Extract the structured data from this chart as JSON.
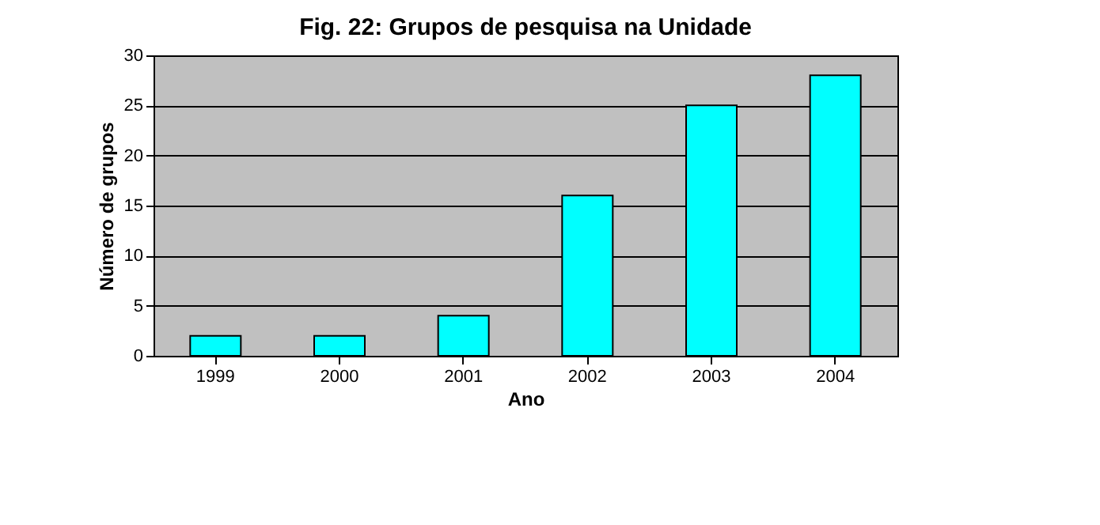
{
  "chart_data": {
    "type": "bar",
    "title": "Fig. 22: Grupos de pesquisa na Unidade",
    "xlabel": "Ano",
    "ylabel": "Número de grupos",
    "categories": [
      "1999",
      "2000",
      "2001",
      "2002",
      "2003",
      "2004"
    ],
    "values": [
      2,
      2,
      4,
      16,
      25,
      28
    ],
    "color": "#00ffff",
    "ylim": [
      0,
      30
    ],
    "yticks": [
      0,
      5,
      10,
      15,
      20,
      25,
      30
    ],
    "grid": "y"
  }
}
